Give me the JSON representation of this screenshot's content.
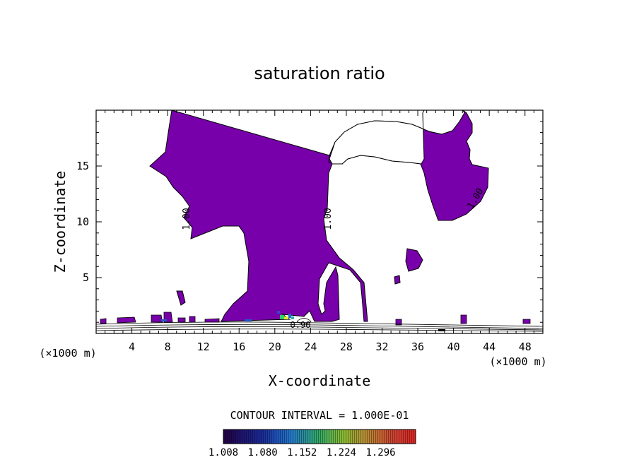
{
  "chart_data": {
    "type": "contour",
    "title": "saturation ratio",
    "xlabel": "X-coordinate",
    "ylabel": "Z-coordinate",
    "x_unit": "(×1000 m)",
    "y_unit": "(×1000 m)",
    "xlim": [
      0,
      50
    ],
    "ylim": [
      0,
      20
    ],
    "x_ticks": [
      4,
      8,
      12,
      16,
      20,
      24,
      28,
      32,
      36,
      40,
      44,
      48
    ],
    "y_ticks": [
      5,
      10,
      15
    ],
    "contour_interval_text": "CONTOUR INTERVAL = 1.000E-01",
    "contour_labels": [
      "1.00",
      "1.00",
      "1.00",
      "0.90"
    ],
    "colorbar": {
      "ticks": [
        "1.008",
        "1.080",
        "1.152",
        "1.224",
        "1.296"
      ],
      "range": [
        1.008,
        1.36
      ]
    },
    "colors": {
      "fill": "#7700aa",
      "line": "#000000"
    }
  }
}
